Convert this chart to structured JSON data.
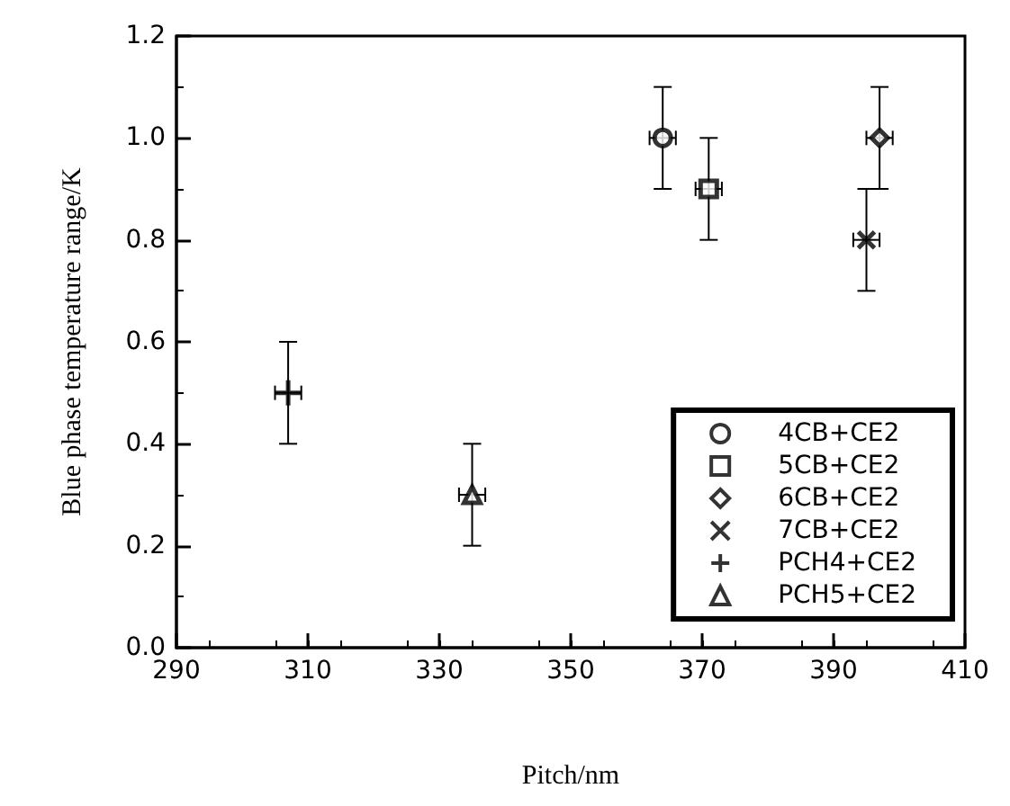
{
  "chart_data": {
    "type": "scatter",
    "xlabel": "Pitch/nm",
    "ylabel": "Blue phase temperature range/K",
    "xlim": [
      290,
      410
    ],
    "xticks": [
      290,
      310,
      330,
      350,
      370,
      390,
      410
    ],
    "ylim": [
      0,
      1.2
    ],
    "yticks": [
      {
        "value": 0,
        "label": "0.0"
      },
      {
        "value": 0.2,
        "label": "0.2"
      },
      {
        "value": 0.4,
        "label": "0.4"
      },
      {
        "value": 0.6,
        "label": "0.6"
      },
      {
        "value": 0.8,
        "label": "0.8"
      },
      {
        "value": 1.0,
        "label": "1.0"
      },
      {
        "value": 1.2,
        "label": "1.2"
      }
    ],
    "grid": false,
    "legend": "bottom right",
    "series": [
      {
        "name": "4CB+CE2",
        "color": "#000000",
        "marker": "circle",
        "x": [
          364
        ],
        "values": [
          1.0
        ],
        "errors": [
          0.1
        ],
        "xerrors": [
          2
        ]
      },
      {
        "name": "5CB+CE2",
        "color": "#000000",
        "marker": "square",
        "x": [
          371
        ],
        "values": [
          0.9
        ],
        "errors": [
          0.1
        ],
        "xerrors": [
          2
        ]
      },
      {
        "name": "6CB+CE2",
        "color": "#000000",
        "marker": "diamond",
        "x": [
          397
        ],
        "values": [
          1.0
        ],
        "errors": [
          0.1
        ],
        "xerrors": [
          2
        ]
      },
      {
        "name": "7CB+CE2",
        "color": "#000000",
        "marker": "cross",
        "x": [
          395
        ],
        "values": [
          0.8
        ],
        "errors": [
          0.1
        ],
        "xerrors": [
          2
        ]
      },
      {
        "name": "PCH4+CE2",
        "color": "#000000",
        "marker": "plus",
        "x": [
          307
        ],
        "values": [
          0.5
        ],
        "errors": [
          0.1
        ],
        "xerrors": [
          2
        ]
      },
      {
        "name": "PCH5+CE2",
        "color": "#000000",
        "marker": "triangle",
        "x": [
          335
        ],
        "values": [
          0.3
        ],
        "errors": [
          0.1
        ],
        "xerrors": [
          2
        ]
      }
    ]
  }
}
